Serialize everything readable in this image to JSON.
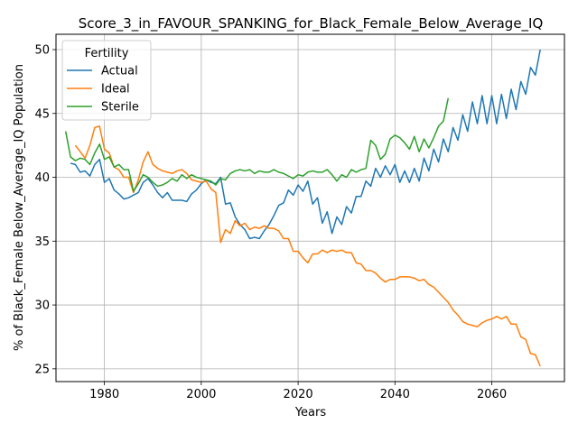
{
  "chart_data": {
    "type": "line",
    "title": "Score_3_in_FAVOUR_SPANKING_for_Black_Female_Below_Average_IQ",
    "xlabel": "Years",
    "ylabel": "% of Black_Female Below_Average_IQ Population",
    "xlim": [
      1970,
      2075
    ],
    "ylim": [
      24,
      51.2
    ],
    "xticks": [
      1980,
      2000,
      2020,
      2040,
      2060
    ],
    "yticks": [
      25,
      30,
      35,
      40,
      45,
      50
    ],
    "grid": true,
    "legend": {
      "title": "Fertility",
      "placement": "top-left"
    },
    "series": [
      {
        "name": "Actual",
        "color": "#1f77b4",
        "x": [
          1973,
          1974,
          1975,
          1976,
          1977,
          1978,
          1979,
          1980,
          1981,
          1982,
          1983,
          1984,
          1985,
          1986,
          1987,
          1988,
          1989,
          1990,
          1991,
          1992,
          1993,
          1994,
          1995,
          1996,
          1997,
          1998,
          1999,
          2000,
          2001,
          2002,
          2003,
          2004,
          2005,
          2006,
          2007,
          2008,
          2009,
          2010,
          2011,
          2012,
          2013,
          2014,
          2015,
          2016,
          2017,
          2018,
          2019,
          2020,
          2021,
          2022,
          2023,
          2024,
          2025,
          2026,
          2027,
          2028,
          2029,
          2030,
          2031,
          2032,
          2033,
          2034,
          2035,
          2036,
          2037,
          2038,
          2039,
          2040,
          2041,
          2042,
          2043,
          2044,
          2045,
          2046,
          2047,
          2048,
          2049,
          2050,
          2051,
          2052,
          2053,
          2054,
          2055,
          2056,
          2057,
          2058,
          2059,
          2060,
          2061,
          2062,
          2063,
          2064,
          2065,
          2066,
          2067,
          2068,
          2069,
          2070
        ],
        "values": [
          41.1,
          41.0,
          40.4,
          40.5,
          40.1,
          41.0,
          41.4,
          39.6,
          39.9,
          39.0,
          38.7,
          38.3,
          38.4,
          38.6,
          38.8,
          39.6,
          39.9,
          39.4,
          38.8,
          38.4,
          38.8,
          38.2,
          38.2,
          38.2,
          38.1,
          38.7,
          39.0,
          39.5,
          39.8,
          39.6,
          39.5,
          40.0,
          37.9,
          38.0,
          36.9,
          36.3,
          35.9,
          35.2,
          35.3,
          35.2,
          35.8,
          36.3,
          37.0,
          37.8,
          38.0,
          39.0,
          38.6,
          39.4,
          38.9,
          39.7,
          37.9,
          38.4,
          36.4,
          37.3,
          35.6,
          36.9,
          36.3,
          37.7,
          37.2,
          38.5,
          38.5,
          39.7,
          39.3,
          40.7,
          40.0,
          40.9,
          40.2,
          41.0,
          39.6,
          40.5,
          39.6,
          40.7,
          39.7,
          41.5,
          40.5,
          42.2,
          41.2,
          43.0,
          42.0,
          43.9,
          42.9,
          44.9,
          43.6,
          45.9,
          44.2,
          46.4,
          44.2,
          46.4,
          44.2,
          46.5,
          44.6,
          46.9,
          45.3,
          47.5,
          46.5,
          48.6,
          48.0,
          50.0
        ]
      },
      {
        "name": "Ideal",
        "color": "#ff7f0e",
        "x": [
          1974,
          1975,
          1976,
          1977,
          1978,
          1979,
          1980,
          1981,
          1982,
          1983,
          1984,
          1985,
          1986,
          1987,
          1988,
          1989,
          1990,
          1991,
          1992,
          1993,
          1994,
          1995,
          1996,
          1997,
          1998,
          1999,
          2000,
          2001,
          2002,
          2003,
          2004,
          2005,
          2006,
          2007,
          2008,
          2009,
          2010,
          2011,
          2012,
          2013,
          2014,
          2015,
          2016,
          2017,
          2018,
          2019,
          2020,
          2021,
          2022,
          2023,
          2024,
          2025,
          2026,
          2027,
          2028,
          2029,
          2030,
          2031,
          2032,
          2033,
          2034,
          2035,
          2036,
          2037,
          2038,
          2039,
          2040,
          2041,
          2042,
          2043,
          2044,
          2045,
          2046,
          2047,
          2048,
          2049,
          2050,
          2051,
          2052,
          2053,
          2054,
          2055,
          2056,
          2057,
          2058,
          2059,
          2060,
          2061,
          2062,
          2063,
          2064,
          2065,
          2066,
          2067,
          2068,
          2069,
          2070
        ],
        "values": [
          42.5,
          42.0,
          41.5,
          42.5,
          43.9,
          44.0,
          42.2,
          41.9,
          40.8,
          40.6,
          40.0,
          40.0,
          38.8,
          39.8,
          41.2,
          42.0,
          41.0,
          40.7,
          40.5,
          40.4,
          40.3,
          40.5,
          40.6,
          40.3,
          39.8,
          39.7,
          39.6,
          39.7,
          39.1,
          38.8,
          34.9,
          35.9,
          35.6,
          36.6,
          36.2,
          36.4,
          35.9,
          36.1,
          36.0,
          36.2,
          36.0,
          36.0,
          35.8,
          35.2,
          35.2,
          34.2,
          34.2,
          33.7,
          33.3,
          34.0,
          34.0,
          34.3,
          34.1,
          34.3,
          34.2,
          34.3,
          34.1,
          34.1,
          33.3,
          33.2,
          32.7,
          32.7,
          32.5,
          32.1,
          31.8,
          32.0,
          32.0,
          32.2,
          32.2,
          32.2,
          32.1,
          31.9,
          32.0,
          31.6,
          31.4,
          31.0,
          30.6,
          30.2,
          29.6,
          29.2,
          28.7,
          28.5,
          28.4,
          28.3,
          28.6,
          28.8,
          28.9,
          29.1,
          28.9,
          29.1,
          28.5,
          28.5,
          27.5,
          27.3,
          26.2,
          26.1,
          25.2
        ]
      },
      {
        "name": "Sterile",
        "color": "#2ca02c",
        "x": [
          1972,
          1973,
          1974,
          1975,
          1976,
          1977,
          1978,
          1979,
          1980,
          1981,
          1982,
          1983,
          1984,
          1985,
          1986,
          1987,
          1988,
          1989,
          1990,
          1991,
          1992,
          1993,
          1994,
          1995,
          1996,
          1997,
          1998,
          1999,
          2000,
          2001,
          2002,
          2003,
          2004,
          2005,
          2006,
          2007,
          2008,
          2009,
          2010,
          2011,
          2012,
          2013,
          2014,
          2015,
          2016,
          2017,
          2018,
          2019,
          2020,
          2021,
          2022,
          2023,
          2024,
          2025,
          2026,
          2027,
          2028,
          2029,
          2030,
          2031,
          2032,
          2033,
          2034,
          2035,
          2036,
          2037,
          2038,
          2039,
          2040,
          2041,
          2042,
          2043,
          2044,
          2045,
          2046,
          2047,
          2048,
          2049,
          2050,
          2051
        ],
        "values": [
          43.6,
          41.6,
          41.3,
          41.5,
          41.4,
          41.0,
          41.9,
          42.6,
          41.4,
          41.6,
          40.8,
          41.0,
          40.6,
          40.6,
          38.9,
          39.5,
          40.2,
          40.0,
          39.6,
          39.3,
          39.4,
          39.6,
          39.9,
          39.7,
          40.2,
          39.9,
          40.2,
          40.0,
          39.9,
          39.8,
          39.7,
          39.4,
          39.9,
          39.8,
          40.3,
          40.5,
          40.6,
          40.5,
          40.6,
          40.3,
          40.5,
          40.4,
          40.4,
          40.6,
          40.4,
          40.3,
          40.1,
          39.9,
          40.2,
          40.1,
          40.4,
          40.5,
          40.4,
          40.4,
          40.6,
          40.2,
          39.7,
          40.2,
          40.0,
          40.6,
          40.4,
          40.6,
          40.7,
          42.9,
          42.5,
          41.4,
          41.8,
          43.0,
          43.3,
          43.1,
          42.7,
          42.2,
          43.2,
          42.0,
          43.0,
          42.3,
          43.1,
          44.0,
          44.4,
          46.2
        ]
      }
    ]
  }
}
